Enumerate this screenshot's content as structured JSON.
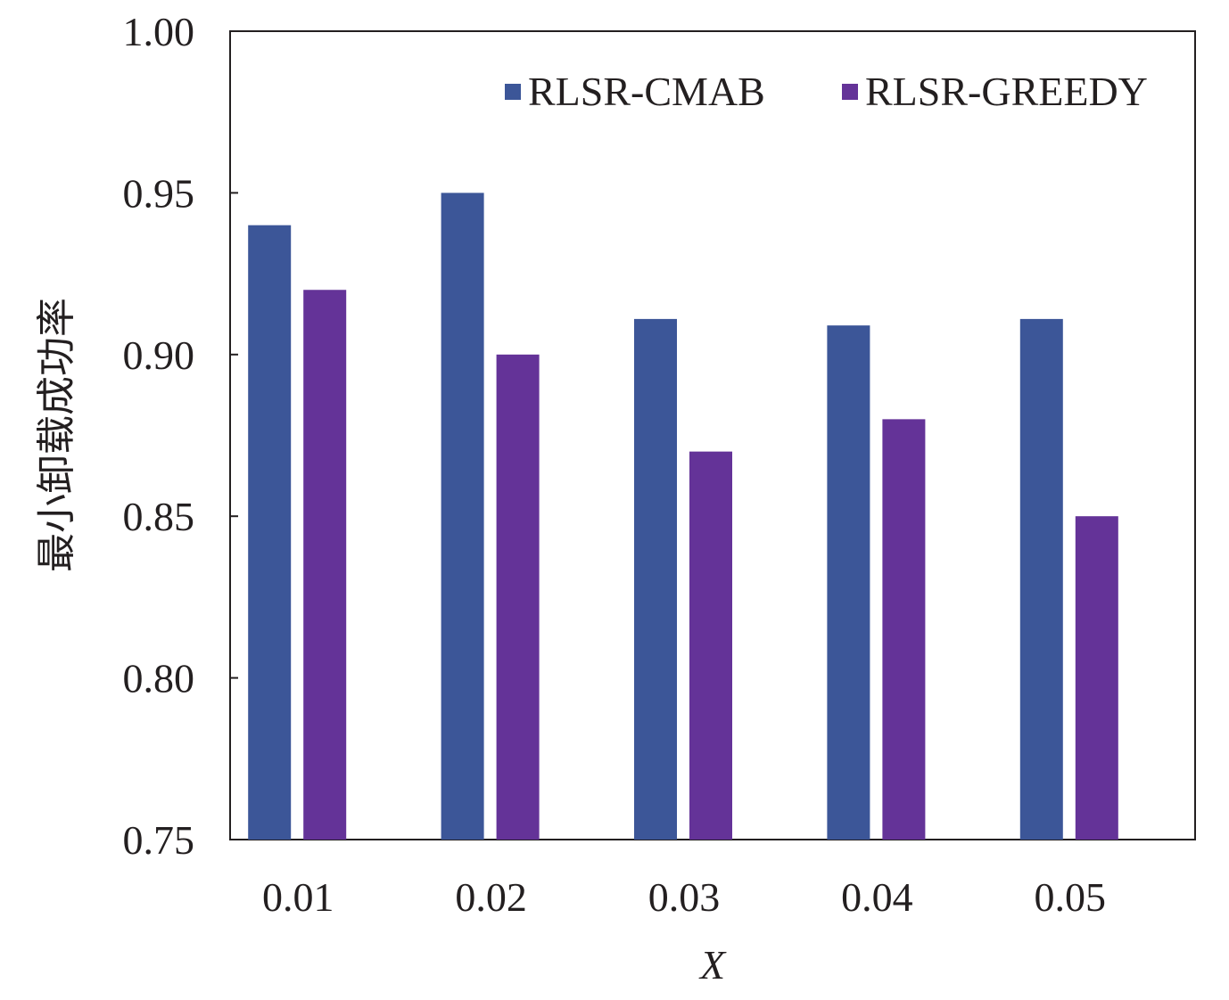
{
  "chart_data": {
    "type": "bar",
    "xlabel": "X",
    "ylabel": "最小卸载成功率",
    "categories": [
      "0.01",
      "0.02",
      "0.03",
      "0.04",
      "0.05"
    ],
    "ylim": [
      0.75,
      1.0
    ],
    "yticks": [
      "0.75",
      "0.80",
      "0.85",
      "0.90",
      "0.95",
      "1.00"
    ],
    "grid": false,
    "legend_position": "top-right",
    "series": [
      {
        "name": "RLSR-CMAB",
        "color": "#3c5698",
        "values": [
          0.94,
          0.95,
          0.911,
          0.909,
          0.911
        ]
      },
      {
        "name": "RLSR-GREEDY",
        "color": "#643398",
        "values": [
          0.92,
          0.9,
          0.87,
          0.88,
          0.85
        ]
      }
    ]
  }
}
